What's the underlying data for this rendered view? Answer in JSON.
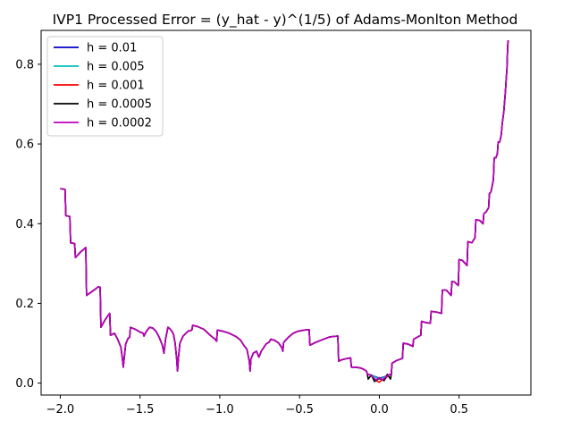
{
  "chart_data": {
    "type": "line",
    "title": "IVP1 Processed Error = (y_hat - y)^(1/5) of Adams-Monlton Method",
    "xlabel": "",
    "ylabel": "",
    "xlim": [
      -2.12,
      0.95
    ],
    "ylim": [
      -0.03,
      0.885
    ],
    "grid": false,
    "legend_position": "top-left",
    "xticks": [
      -2.0,
      -1.5,
      -1.0,
      -0.5,
      0.0,
      0.5
    ],
    "xtick_labels": [
      "−2.0",
      "−1.5",
      "−1.0",
      "−0.5",
      "0.0",
      "0.5"
    ],
    "yticks": [
      0.0,
      0.2,
      0.4,
      0.6,
      0.8
    ],
    "ytick_labels": [
      "0.0",
      "0.2",
      "0.4",
      "0.6",
      "0.8"
    ],
    "series": [
      {
        "name": "h = 0.01",
        "color": "#0000cc",
        "center": [
          [
            -0.05,
            0.02
          ],
          [
            0.0,
            0.012
          ],
          [
            0.05,
            0.018
          ]
        ]
      },
      {
        "name": "h = 0.005",
        "color": "#00bfbf",
        "center": [
          [
            -0.04,
            0.018
          ],
          [
            0.0,
            0.01
          ],
          [
            0.04,
            0.016
          ]
        ]
      },
      {
        "name": "h = 0.001",
        "color": "#ff0000",
        "center": [
          [
            -0.04,
            0.014
          ],
          [
            -0.01,
            0.004
          ],
          [
            0.0,
            0.002
          ],
          [
            0.01,
            0.006
          ],
          [
            0.04,
            0.012
          ]
        ]
      },
      {
        "name": "h = 0.0005",
        "color": "#000000",
        "center": [
          [
            -0.07,
            0.01
          ],
          [
            -0.05,
            0.02
          ],
          [
            -0.03,
            0.004
          ],
          [
            0.0,
            0.012
          ],
          [
            0.03,
            0.006
          ],
          [
            0.05,
            0.022
          ],
          [
            0.07,
            0.01
          ]
        ]
      },
      {
        "name": "h = 0.0002",
        "color": "#bf00bf",
        "center": [
          [
            -0.04,
            0.015
          ],
          [
            -0.02,
            0.008
          ],
          [
            0.0,
            0.014
          ],
          [
            0.02,
            0.008
          ],
          [
            0.04,
            0.015
          ]
        ]
      }
    ],
    "shared_curve": [
      [
        -2.0,
        0.488
      ],
      [
        -1.97,
        0.486
      ],
      [
        -1.965,
        0.42
      ],
      [
        -1.94,
        0.418
      ],
      [
        -1.935,
        0.352
      ],
      [
        -1.91,
        0.35
      ],
      [
        -1.905,
        0.315
      ],
      [
        -1.87,
        0.33
      ],
      [
        -1.84,
        0.34
      ],
      [
        -1.835,
        0.22
      ],
      [
        -1.8,
        0.23
      ],
      [
        -1.76,
        0.242
      ],
      [
        -1.75,
        0.24
      ],
      [
        -1.745,
        0.14
      ],
      [
        -1.72,
        0.158
      ],
      [
        -1.7,
        0.17
      ],
      [
        -1.69,
        0.175
      ],
      [
        -1.685,
        0.12
      ],
      [
        -1.66,
        0.125
      ],
      [
        -1.64,
        0.11
      ],
      [
        -1.62,
        0.09
      ],
      [
        -1.61,
        0.06
      ],
      [
        -1.605,
        0.04
      ],
      [
        -1.6,
        0.06
      ],
      [
        -1.59,
        0.098
      ],
      [
        -1.575,
        0.112
      ],
      [
        -1.565,
        0.115
      ],
      [
        -1.56,
        0.14
      ],
      [
        -1.53,
        0.135
      ],
      [
        -1.5,
        0.128
      ],
      [
        -1.48,
        0.125
      ],
      [
        -1.475,
        0.118
      ],
      [
        -1.46,
        0.13
      ],
      [
        -1.44,
        0.14
      ],
      [
        -1.42,
        0.138
      ],
      [
        -1.4,
        0.13
      ],
      [
        -1.38,
        0.115
      ],
      [
        -1.36,
        0.095
      ],
      [
        -1.35,
        0.075
      ],
      [
        -1.34,
        0.11
      ],
      [
        -1.325,
        0.14
      ],
      [
        -1.315,
        0.137
      ],
      [
        -1.3,
        0.13
      ],
      [
        -1.29,
        0.122
      ],
      [
        -1.28,
        0.1
      ],
      [
        -1.27,
        0.06
      ],
      [
        -1.265,
        0.03
      ],
      [
        -1.26,
        0.06
      ],
      [
        -1.25,
        0.1
      ],
      [
        -1.23,
        0.118
      ],
      [
        -1.2,
        0.13
      ],
      [
        -1.175,
        0.133
      ],
      [
        -1.17,
        0.145
      ],
      [
        -1.14,
        0.142
      ],
      [
        -1.1,
        0.135
      ],
      [
        -1.06,
        0.12
      ],
      [
        -1.03,
        0.11
      ],
      [
        -1.02,
        0.105
      ],
      [
        -1.015,
        0.133
      ],
      [
        -0.98,
        0.13
      ],
      [
        -0.94,
        0.125
      ],
      [
        -0.9,
        0.117
      ],
      [
        -0.87,
        0.108
      ],
      [
        -0.85,
        0.095
      ],
      [
        -0.83,
        0.085
      ],
      [
        -0.815,
        0.055
      ],
      [
        -0.81,
        0.03
      ],
      [
        -0.805,
        0.06
      ],
      [
        -0.79,
        0.075
      ],
      [
        -0.77,
        0.08
      ],
      [
        -0.76,
        0.07
      ],
      [
        -0.755,
        0.065
      ],
      [
        -0.74,
        0.08
      ],
      [
        -0.71,
        0.098
      ],
      [
        -0.69,
        0.103
      ],
      [
        -0.68,
        0.11
      ],
      [
        -0.655,
        0.107
      ],
      [
        -0.63,
        0.1
      ],
      [
        -0.61,
        0.088
      ],
      [
        -0.605,
        0.08
      ],
      [
        -0.6,
        0.102
      ],
      [
        -0.57,
        0.115
      ],
      [
        -0.54,
        0.125
      ],
      [
        -0.51,
        0.13
      ],
      [
        -0.47,
        0.133
      ],
      [
        -0.44,
        0.134
      ],
      [
        -0.435,
        0.095
      ],
      [
        -0.4,
        0.102
      ],
      [
        -0.35,
        0.11
      ],
      [
        -0.31,
        0.116
      ],
      [
        -0.26,
        0.118
      ],
      [
        -0.255,
        0.055
      ],
      [
        -0.24,
        0.058
      ],
      [
        -0.2,
        0.062
      ],
      [
        -0.18,
        0.063
      ],
      [
        -0.175,
        0.04
      ],
      [
        -0.15,
        0.04
      ],
      [
        -0.12,
        0.038
      ],
      [
        -0.1,
        0.035
      ],
      [
        -0.08,
        0.03
      ],
      [
        -0.075,
        0.022
      ],
      [
        -0.06,
        0.021
      ],
      [
        -0.04,
        0.019
      ],
      [
        -0.02,
        0.016
      ],
      [
        0.0,
        0.012
      ],
      [
        0.02,
        0.016
      ],
      [
        0.04,
        0.019
      ],
      [
        0.06,
        0.021
      ],
      [
        0.075,
        0.022
      ],
      [
        0.08,
        0.05
      ],
      [
        0.11,
        0.057
      ],
      [
        0.145,
        0.062
      ],
      [
        0.15,
        0.1
      ],
      [
        0.18,
        0.098
      ],
      [
        0.21,
        0.092
      ],
      [
        0.215,
        0.11
      ],
      [
        0.25,
        0.118
      ],
      [
        0.26,
        0.12
      ],
      [
        0.265,
        0.155
      ],
      [
        0.29,
        0.152
      ],
      [
        0.32,
        0.15
      ],
      [
        0.325,
        0.18
      ],
      [
        0.36,
        0.178
      ],
      [
        0.39,
        0.175
      ],
      [
        0.395,
        0.233
      ],
      [
        0.42,
        0.233
      ],
      [
        0.45,
        0.22
      ],
      [
        0.455,
        0.255
      ],
      [
        0.47,
        0.254
      ],
      [
        0.495,
        0.245
      ],
      [
        0.5,
        0.31
      ],
      [
        0.52,
        0.308
      ],
      [
        0.55,
        0.295
      ],
      [
        0.555,
        0.355
      ],
      [
        0.58,
        0.352
      ],
      [
        0.6,
        0.365
      ],
      [
        0.605,
        0.41
      ],
      [
        0.63,
        0.408
      ],
      [
        0.65,
        0.4
      ],
      [
        0.655,
        0.425
      ],
      [
        0.67,
        0.43
      ],
      [
        0.685,
        0.44
      ],
      [
        0.69,
        0.475
      ],
      [
        0.7,
        0.48
      ],
      [
        0.715,
        0.51
      ],
      [
        0.72,
        0.565
      ],
      [
        0.73,
        0.565
      ],
      [
        0.74,
        0.575
      ],
      [
        0.745,
        0.605
      ],
      [
        0.755,
        0.605
      ],
      [
        0.765,
        0.625
      ],
      [
        0.77,
        0.65
      ],
      [
        0.78,
        0.68
      ],
      [
        0.79,
        0.73
      ],
      [
        0.8,
        0.79
      ],
      [
        0.805,
        0.85
      ],
      [
        0.808,
        0.86
      ]
    ]
  }
}
